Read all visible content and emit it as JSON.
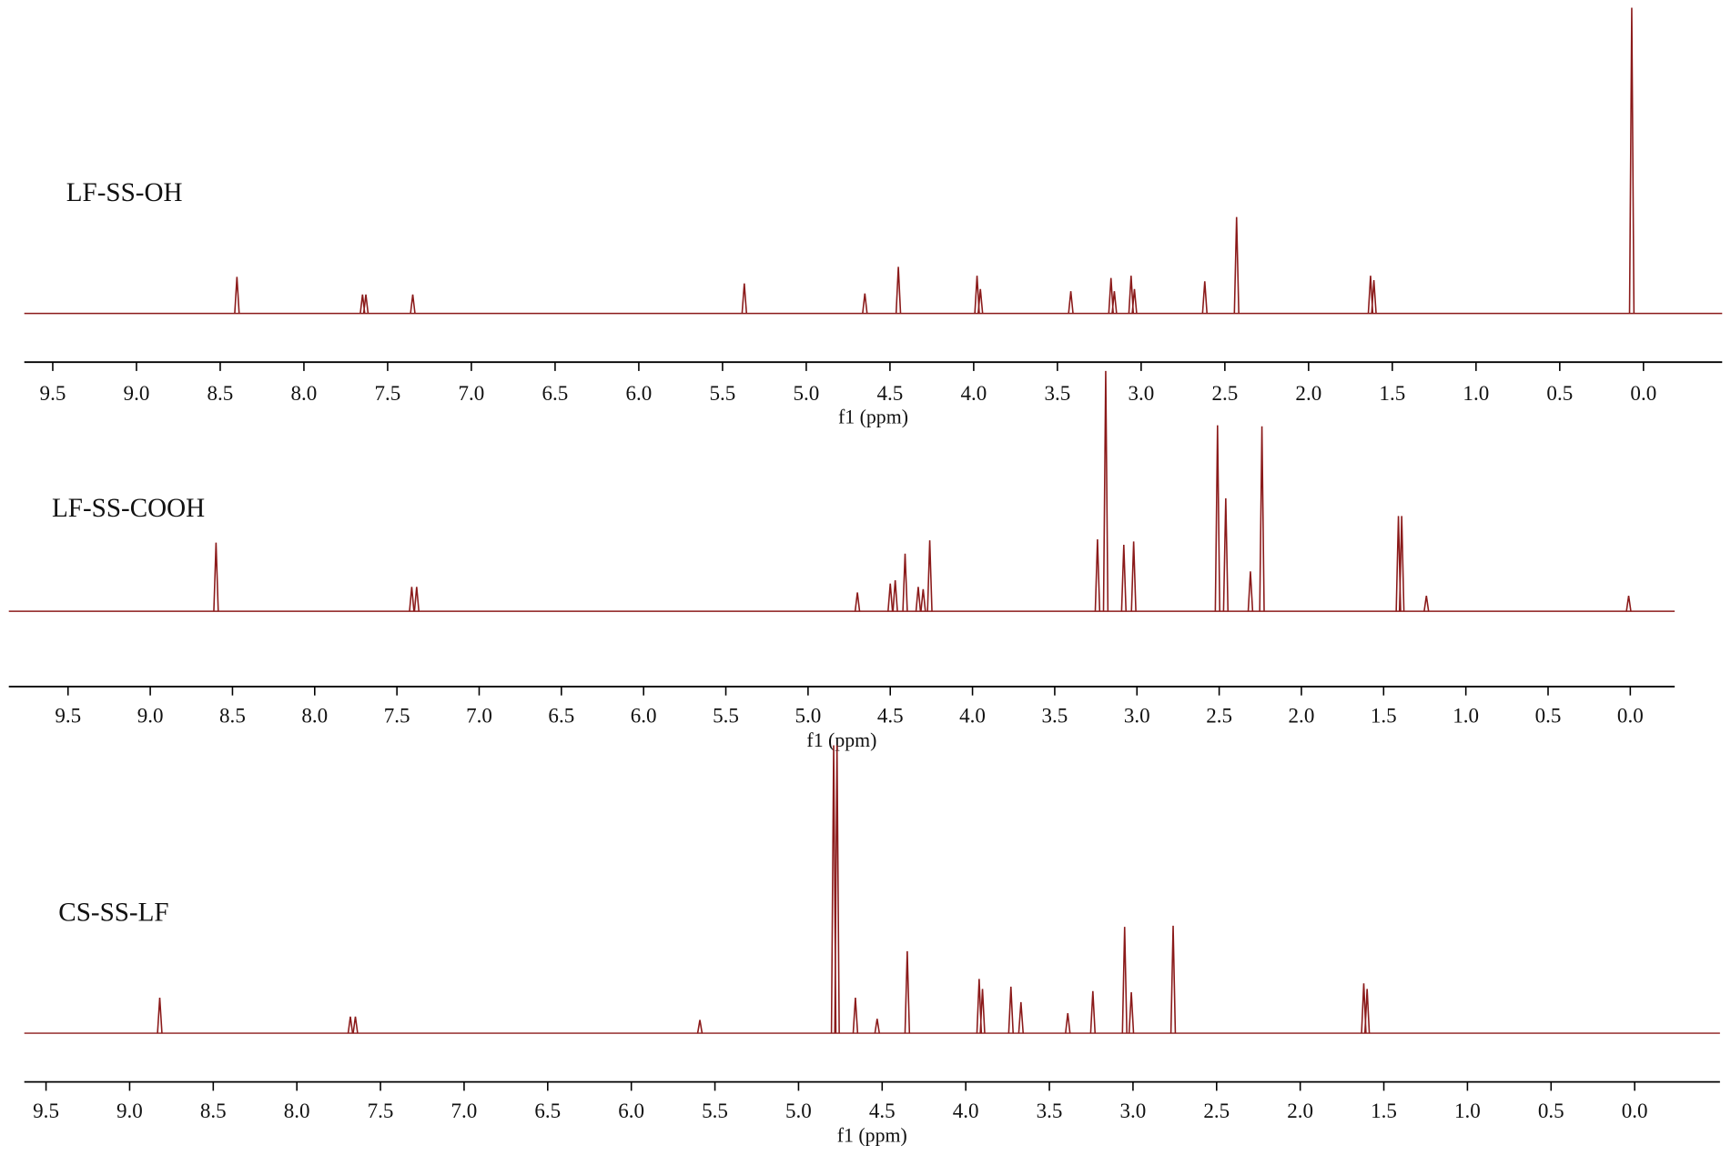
{
  "chart_data": [
    {
      "type": "stick",
      "title": "LF-SS-OH",
      "x_label": "f1 (ppm)",
      "color": "#8b1a1a",
      "xlim": [
        9.67,
        -0.47
      ],
      "xticks": [
        9.5,
        {
          "value": 9,
          "label": "9.0"
        },
        8.5,
        {
          "value": 8,
          "label": "8.0"
        },
        7.5,
        {
          "value": 7,
          "label": "7.0"
        },
        6.5,
        {
          "value": 6,
          "label": "6.0"
        },
        5.5,
        {
          "value": 5,
          "label": "5.0"
        },
        4.5,
        {
          "value": 4,
          "label": "4.0"
        },
        3.5,
        {
          "value": 3,
          "label": "3.0"
        },
        2.5,
        {
          "value": 2,
          "label": "2.0"
        },
        1.5,
        {
          "value": 1,
          "label": "1.0"
        },
        0.5,
        {
          "value": 0,
          "label": "0.0"
        }
      ],
      "x": [
        8.4,
        7.65,
        7.63,
        7.35,
        5.37,
        4.65,
        4.45,
        3.98,
        3.96,
        3.42,
        3.18,
        3.16,
        3.06,
        3.04,
        2.62,
        2.43,
        1.63,
        1.61,
        0.07
      ],
      "values": [
        33,
        17,
        17,
        17,
        27,
        18,
        42,
        34,
        22,
        20,
        32,
        20,
        34,
        22,
        29,
        87,
        34,
        30,
        276
      ]
    },
    {
      "type": "stick",
      "title": "LF-SS-COOH",
      "x_label": "f1 (ppm)",
      "color": "#8b1a1a",
      "xlim": [
        9.86,
        -0.27
      ],
      "xticks": [
        9.5,
        {
          "value": 9,
          "label": "9.0"
        },
        8.5,
        {
          "value": 8,
          "label": "8.0"
        },
        7.5,
        {
          "value": 7,
          "label": "7.0"
        },
        6.5,
        {
          "value": 6,
          "label": "6.0"
        },
        5.5,
        {
          "value": 5,
          "label": "5.0"
        },
        4.5,
        {
          "value": 4,
          "label": "4.0"
        },
        3.5,
        {
          "value": 3,
          "label": "3.0"
        },
        2.5,
        {
          "value": 2,
          "label": "2.0"
        },
        1.5,
        {
          "value": 1,
          "label": "1.0"
        },
        0.5,
        {
          "value": 0,
          "label": "0.0"
        }
      ],
      "x": [
        8.6,
        7.41,
        7.38,
        4.7,
        4.5,
        4.47,
        4.41,
        4.33,
        4.3,
        4.26,
        3.24,
        3.19,
        3.08,
        3.02,
        2.51,
        2.46,
        2.31,
        2.24,
        1.41,
        1.39,
        1.24,
        0.01
      ],
      "values": [
        62,
        22,
        22,
        17,
        25,
        28,
        52,
        22,
        20,
        64,
        65,
        217,
        60,
        63,
        168,
        102,
        36,
        167,
        86,
        86,
        14,
        14
      ]
    },
    {
      "type": "stick",
      "title": "CS-SS-LF",
      "x_label": "f1 (ppm)",
      "color": "#8b1a1a",
      "xlim": [
        9.63,
        -0.51
      ],
      "xticks": [
        9.5,
        {
          "value": 9,
          "label": "9.0"
        },
        8.5,
        {
          "value": 8,
          "label": "8.0"
        },
        7.5,
        {
          "value": 7,
          "label": "7.0"
        },
        6.5,
        {
          "value": 6,
          "label": "6.0"
        },
        5.5,
        {
          "value": 5,
          "label": "5.0"
        },
        4.5,
        {
          "value": 4,
          "label": "4.0"
        },
        3.5,
        {
          "value": 3,
          "label": "3.0"
        },
        2.5,
        {
          "value": 2,
          "label": "2.0"
        },
        1.5,
        {
          "value": 1,
          "label": "1.0"
        },
        0.5,
        {
          "value": 0,
          "label": "0.0"
        }
      ],
      "x": [
        8.82,
        7.68,
        7.65,
        5.59,
        4.79,
        4.77,
        4.66,
        4.53,
        4.35,
        3.92,
        3.9,
        3.73,
        3.67,
        3.39,
        3.24,
        3.05,
        3.01,
        2.76,
        1.62,
        1.6
      ],
      "values": [
        32,
        15,
        15,
        12,
        260,
        260,
        32,
        13,
        74,
        49,
        40,
        42,
        28,
        18,
        38,
        96,
        37,
        97,
        45,
        40
      ]
    }
  ]
}
